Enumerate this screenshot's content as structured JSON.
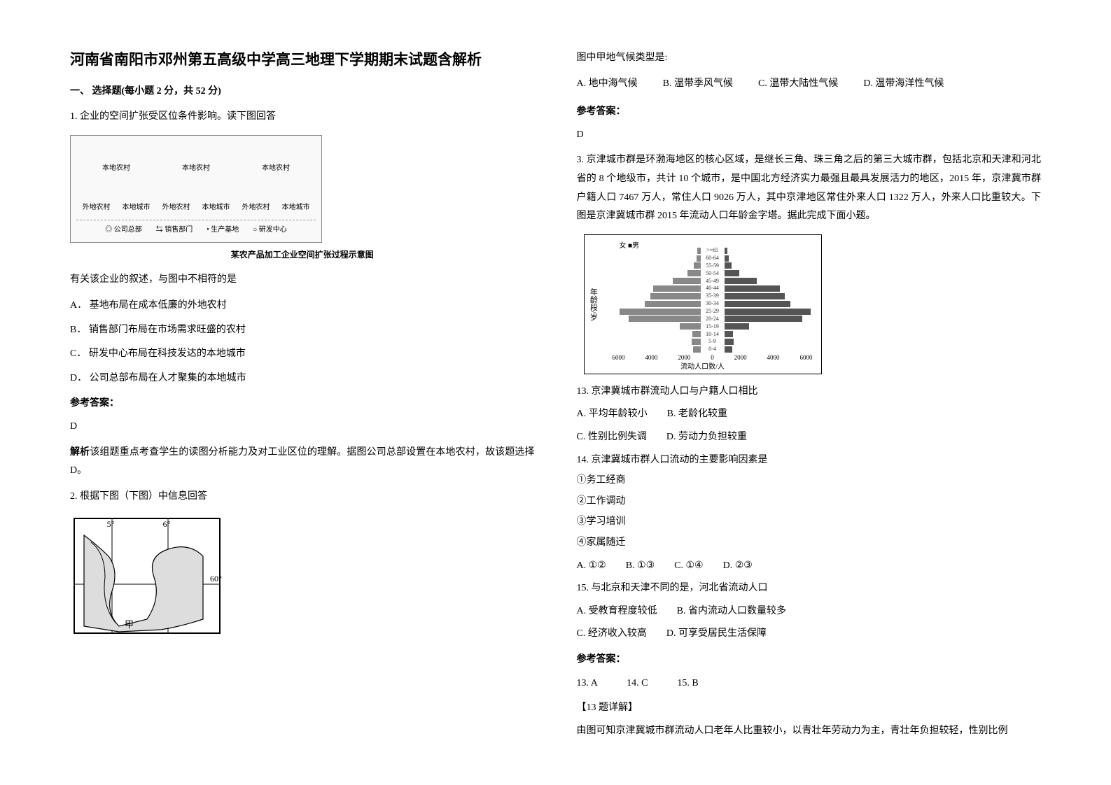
{
  "doc": {
    "title": "河南省南阳市邓州第五高级中学高三地理下学期期末试题含解析",
    "section1": "一、 选择题(每小题 2 分，共 52 分)"
  },
  "q1": {
    "stem": "1. 企业的空间扩张受区位条件影响。读下图回答",
    "figure": {
      "row_labels": [
        "本地农村",
        "本地农村",
        "本地农村"
      ],
      "bottom_labels": [
        "外地农村",
        "本地城市",
        "外地农村",
        "本地城市",
        "外地农村",
        "本地城市"
      ],
      "legend": "◎ 公司总部　　⇆ 销售部门　　• 生产基地　　○ 研发中心",
      "caption": "某农产品加工企业空间扩张过程示意图"
    },
    "subtext": "有关该企业的叙述，与图中不相符的是",
    "options": {
      "A": "A．  基地布局在成本低廉的外地农村",
      "B": "B．  销售部门布局在市场需求旺盛的农村",
      "C": "C．  研发中心布局在科技发达的本地城市",
      "D": "D．  公司总部布局在人才聚集的本地城市"
    },
    "answer_label": "参考答案：",
    "answer": "D",
    "explain": "解析该组题重点考查学生的读图分析能力及对工业区位的理解。据图公司总部设置在本地农村，故该题选择 D。"
  },
  "q2": {
    "stem": "2. 根据下图（下图）中信息回答",
    "map": {
      "lon1": "5°",
      "lon2": "6°",
      "lat": "60°",
      "marker": "甲"
    },
    "stem2": "图中甲地气候类型是:",
    "options": {
      "A": "A. 地中海气候",
      "B": "B. 温带季风气候",
      "C": "C. 温带大陆性气候",
      "D": "D. 温带海洋性气候"
    },
    "answer_label": "参考答案：",
    "answer": "D"
  },
  "q3": {
    "stem": "3. 京津城市群是环渤海地区的核心区域，是继长三角、珠三角之后的第三大城市群，包括北京和天津和河北省的 8 个地级市，共计 10 个城市，是中国北方经济实力最强且最具发展活力的地区，2015 年，京津冀市群户籍人口 7467 万人，常住人口 9026 万人，其中京津地区常住外来人口 1322 万人，外来人口比重较大。下图是京津冀城市群 2015 年流动人口年龄金字塔。据此完成下面小题。",
    "pyramid": {
      "legend": "女 ■男",
      "ylabel": "年龄段/岁",
      "xlabel": "流动人口数/人",
      "ages": [
        ">=65",
        "60-64",
        "55-59",
        "50-54",
        "45-49",
        "40-44",
        "35-39",
        "30-34",
        "25-29",
        "20-24",
        "15-19",
        "10-14",
        "5-9",
        "0-4"
      ],
      "female": [
        200,
        280,
        450,
        900,
        1900,
        3200,
        3400,
        3800,
        5500,
        4900,
        1400,
        550,
        600,
        520
      ],
      "male": [
        220,
        300,
        500,
        1000,
        2200,
        3800,
        4100,
        4500,
        5900,
        5300,
        1700,
        600,
        640,
        560
      ],
      "xticks": [
        "6000",
        "4000",
        "2000",
        "0",
        "2000",
        "4000",
        "6000"
      ],
      "xlim": 6000,
      "female_color": "#888888",
      "male_color": "#555555"
    },
    "q13": {
      "stem": "13.  京津冀城市群流动人口与户籍人口相比",
      "A": "A.  平均年龄较小",
      "B": "B.  老龄化较重",
      "C": "C.  性别比例失调",
      "D": "D.  劳动力负担较重"
    },
    "q14": {
      "stem": "14.  京津冀城市群人口流动的主要影响因素是",
      "o1": "①务工经商",
      "o2": "②工作调动",
      "o3": "③学习培训",
      "o4": "④家属随迁",
      "A": "A.  ①②",
      "B": "B.  ①③",
      "C": "C.  ①④",
      "D": "D.  ②③"
    },
    "q15": {
      "stem": "15.  与北京和天津不同的是，河北省流动人口",
      "A": "A.  受教育程度较低",
      "B": "B.  省内流动人口数量较多",
      "C": "C.  经济收入较高",
      "D": "D.  可享受居民生活保障"
    },
    "answer_label": "参考答案：",
    "answers": "13.  A　　　14.  C　　　15.  B",
    "explain_head": "【13 题详解】",
    "explain": "由图可知京津冀城市群流动人口老年人比重较小，以青壮年劳动力为主，青壮年负担较轻，性别比例"
  }
}
